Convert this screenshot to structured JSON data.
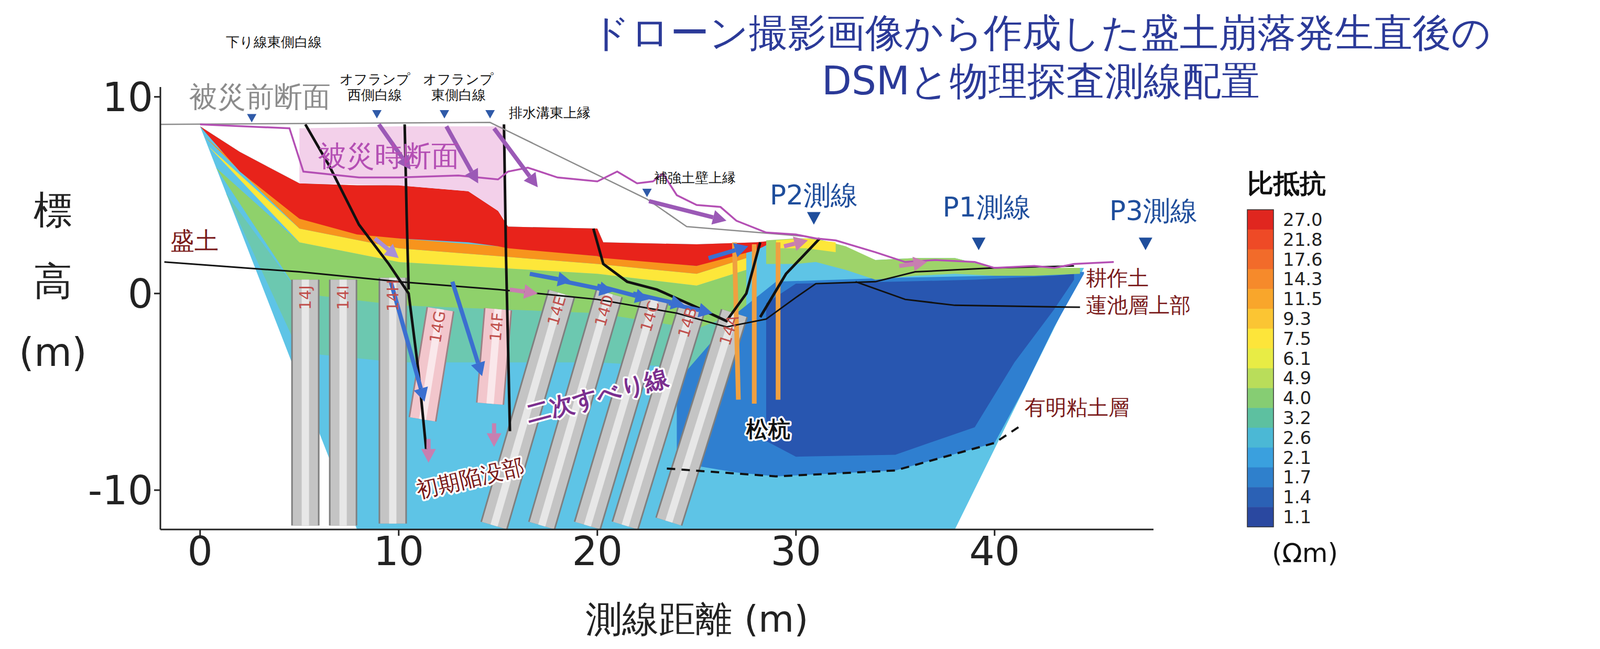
{
  "chart_data": {
    "type": "section",
    "title": [
      "ドローン撮影画像から作成した盛土崩落発生直後の",
      "DSMと物理探査測線配置"
    ],
    "x_label": "測線距離 (m)",
    "y_label": "標高 (m)",
    "xlim": [
      -2,
      48
    ],
    "xticks": [
      0,
      10,
      20,
      30,
      40
    ],
    "ylim": [
      -12,
      10.5
    ],
    "yticks": [
      -10,
      0,
      10
    ],
    "zones": [
      {
        "color": "#5ec4e6",
        "x": [
          0,
          2,
          5,
          7.9,
          10,
          13.5,
          15,
          15.5,
          20,
          20.3,
          25,
          28,
          30,
          31,
          34,
          36,
          38,
          40,
          42,
          44.5
        ],
        "lo": [
          8.5,
          3.3,
          -4.5,
          -12,
          -12,
          -12,
          -12,
          -12,
          -12,
          -12,
          -12,
          -12,
          -12,
          -12,
          -12,
          -12,
          -12,
          -7.9,
          -3.8,
          1.3
        ],
        "hi": [
          8.5,
          7.2,
          5.6,
          5.5,
          5.5,
          5.2,
          4.2,
          3.4,
          3.3,
          2.6,
          2.5,
          2.6,
          2.8,
          2.8,
          1.7,
          1.8,
          1.8,
          1.3,
          1.3,
          1.3
        ]
      },
      {
        "color": "#6cc8b0",
        "x": [
          1.3,
          5,
          10,
          15,
          20,
          25,
          27.5
        ],
        "lo": [
          5.1,
          -3.0,
          -3.5,
          -3.5,
          -3.5,
          -3.8,
          -2.5
        ],
        "hi": [
          5.1,
          0.0,
          -0.6,
          -0.8,
          -1.0,
          -1.8,
          -0.8
        ]
      },
      {
        "color": "#8fd16b",
        "x": [
          0.8,
          5,
          10,
          15,
          20,
          25,
          27.5
        ],
        "lo": [
          6.4,
          0.0,
          -0.6,
          -0.8,
          -1.0,
          -1.8,
          -0.8
        ],
        "hi": [
          6.4,
          2.6,
          1.6,
          1.3,
          1.0,
          0.4,
          1.2
        ]
      },
      {
        "color": "#fde73a",
        "x": [
          0.4,
          5,
          10,
          15,
          20,
          25,
          27.5
        ],
        "lo": [
          7.5,
          2.6,
          1.6,
          1.3,
          1.0,
          0.4,
          1.2
        ],
        "hi": [
          7.5,
          3.3,
          2.3,
          1.9,
          1.5,
          1.0,
          1.8
        ]
      },
      {
        "color": "#f7941d",
        "x": [
          0.2,
          5,
          10,
          15,
          20,
          25,
          27.5
        ],
        "lo": [
          8.0,
          3.3,
          2.3,
          1.9,
          1.5,
          1.0,
          1.8
        ],
        "hi": [
          8.0,
          3.8,
          2.8,
          2.4,
          1.9,
          1.4,
          2.2
        ]
      },
      {
        "color": "#e8231b",
        "x": [
          0,
          2,
          5,
          7.9,
          10,
          13.5,
          15,
          15.5,
          20,
          20.3,
          25,
          28,
          29
        ],
        "lo": [
          8.5,
          6.2,
          3.8,
          3.0,
          2.8,
          2.6,
          2.4,
          2.3,
          1.9,
          1.8,
          1.4,
          2.2,
          2.7
        ],
        "hi": [
          8.5,
          7.2,
          5.6,
          5.5,
          5.5,
          5.2,
          4.2,
          3.4,
          3.3,
          2.6,
          2.5,
          2.6,
          2.7
        ]
      },
      {
        "color": "#2f7fd0",
        "x": [
          24,
          27,
          29,
          35,
          40,
          41.5,
          43,
          44.5
        ],
        "lo": [
          -8.6,
          -9.1,
          -9.3,
          -9.0,
          -7.6,
          -4.8,
          -1.7,
          1.0
        ],
        "hi": [
          -4.5,
          -1.0,
          0.6,
          0.8,
          0.9,
          0.9,
          1.0,
          1.1
        ]
      },
      {
        "color": "#2856b0",
        "x": [
          28.5,
          30,
          35,
          39,
          41,
          43,
          44
        ],
        "lo": [
          -7.5,
          -8.3,
          -8.2,
          -6.8,
          -3.5,
          -0.8,
          0.7
        ],
        "hi": [
          -0.5,
          0.5,
          0.6,
          0.7,
          0.8,
          0.9,
          1.0
        ]
      },
      {
        "color": "#9ed36a",
        "x": [
          28.5,
          30,
          31,
          32.5,
          34,
          36,
          38,
          40,
          42,
          44.3
        ],
        "lo": [
          1.5,
          1.5,
          1.6,
          1.2,
          0.7,
          0.9,
          1.0,
          0.9,
          0.9,
          1.0
        ],
        "hi": [
          2.7,
          2.8,
          2.8,
          2.4,
          1.7,
          1.8,
          1.8,
          1.3,
          1.3,
          1.3
        ]
      },
      {
        "color": "#fde73a",
        "x": [
          29,
          30.5,
          32
        ],
        "lo": [
          2.3,
          2.3,
          2.1
        ],
        "hi": [
          2.7,
          2.8,
          2.6
        ]
      },
      {
        "color": "#f3d0ea",
        "x": [
          5,
          10,
          13.5,
          15,
          15.3
        ],
        "lo": [
          5.6,
          5.5,
          5.2,
          4.2,
          3.8
        ],
        "hi": [
          8.4,
          8.5,
          8.5,
          8.5,
          8.5
        ]
      }
    ],
    "profiles": [
      {
        "name": "被災前断面",
        "color": "#8c8c8c",
        "x": [
          -2,
          14.6,
          22.5,
          24.5,
          30.5
        ],
        "y": [
          8.6,
          8.7,
          4.8,
          3.4,
          2.9
        ],
        "label_x": 3.0,
        "label_y": 10.0
      },
      {
        "name": "被災時断面",
        "color": "#b44fb4",
        "x": [
          0,
          4.5,
          5.2,
          8,
          10,
          13,
          15,
          15.5,
          16.5,
          18,
          20,
          21,
          22,
          22.8,
          23.3,
          24,
          25,
          26.2,
          27,
          28.5,
          30,
          31,
          32,
          34,
          35.5,
          37,
          39,
          40,
          42,
          43,
          44,
          46
        ],
        "y": [
          8.6,
          8.4,
          6.2,
          5.9,
          5.9,
          6.0,
          5.8,
          6.2,
          6.4,
          5.9,
          5.7,
          6.2,
          5.6,
          5.7,
          6.1,
          5.0,
          4.5,
          4.4,
          3.7,
          3.1,
          3.0,
          2.8,
          2.7,
          2.1,
          1.6,
          1.7,
          1.6,
          1.3,
          1.4,
          1.3,
          1.5,
          1.6
        ],
        "label_x": 9.5,
        "label_y": 7.0
      }
    ],
    "boundaries": [
      {
        "x": [
          -1.8,
          5,
          10,
          15,
          20,
          24,
          26.5
        ],
        "y": [
          1.6,
          1.1,
          0.6,
          0.2,
          -0.3,
          -1.0,
          -1.7
        ]
      },
      {
        "x": [
          26.5,
          28.5,
          30,
          31,
          34,
          36,
          38,
          40,
          44
        ],
        "y": [
          -1.7,
          -1.3,
          -0.2,
          0.5,
          0.6,
          1.1,
          1.2,
          1.3,
          1.4
        ]
      },
      {
        "x": [
          33,
          35.5,
          38,
          44.3
        ],
        "y": [
          0.6,
          -0.3,
          -0.6,
          -0.7
        ]
      }
    ],
    "slip_lines": {
      "label": "二次すべり線",
      "label_x": 20.0,
      "label_y": -5.2,
      "lines": [
        {
          "x": [
            5.3,
            6.5,
            8,
            9.5,
            10.5,
            11,
            11.4
          ],
          "y": [
            8.6,
            6.5,
            3.5,
            1.5,
            0,
            -4,
            -8.1
          ]
        },
        {
          "x": [
            10.3,
            10.4,
            10.5
          ],
          "y": [
            8.6,
            4,
            0.2
          ]
        },
        {
          "x": [
            15.3,
            15.4,
            15.6
          ],
          "y": [
            8.6,
            2,
            -7.0
          ]
        },
        {
          "x": [
            19.8,
            20.3,
            21.5,
            23,
            25,
            26.5,
            27.5,
            28.2
          ],
          "y": [
            3.3,
            1.5,
            0.6,
            0.2,
            -0.7,
            -1.4,
            0,
            2.6
          ]
        },
        {
          "x": [
            28.2,
            29.5,
            31.2
          ],
          "y": [
            -1.2,
            1.0,
            2.8
          ]
        }
      ]
    },
    "collapse": {
      "label": "初期陥没部",
      "x": 13.6,
      "y": -9.4
    },
    "clay_boundary": {
      "label": "有明粘土層",
      "label_x": 41.5,
      "label_y": -5.8,
      "line_style": "dashed",
      "x": [
        23.5,
        29,
        35,
        40,
        41.2
      ],
      "y": [
        -8.9,
        -9.3,
        -9.0,
        -7.6,
        -6.8
      ]
    },
    "layer_labels": [
      {
        "text": "盛土",
        "x": -1.5,
        "y": 2.7
      },
      {
        "text": "耕作土",
        "x": 44.6,
        "y": 0.8
      },
      {
        "text": "蓮池層上部",
        "x": 44.6,
        "y": -0.6
      }
    ],
    "site_notes": [
      {
        "text": [
          "下り線東側白線"
        ],
        "x": 3.7,
        "y": 12.8,
        "point": [
          2.6,
          8.7
        ]
      },
      {
        "text": [
          "オフランプ",
          "西側白線"
        ],
        "x": 8.8,
        "y": 10.9,
        "point": [
          8.9,
          8.9
        ]
      },
      {
        "text": [
          "オフランプ",
          "東側白線"
        ],
        "x": 13.0,
        "y": 10.9,
        "point": [
          12.3,
          8.9
        ]
      },
      {
        "text": [
          "排水溝東上縁"
        ],
        "x": 17.6,
        "y": 9.2,
        "point": [
          14.6,
          8.9
        ]
      },
      {
        "text": [
          "補強土壁上縁"
        ],
        "x": 24.9,
        "y": 5.9,
        "point": [
          22.5,
          4.9
        ]
      }
    ],
    "survey_lines": [
      {
        "text": "P2測線",
        "x": 30.9,
        "y": 5.0,
        "point": [
          30.9,
          3.5
        ]
      },
      {
        "text": "P1測線",
        "x": 39.6,
        "y": 4.4,
        "point": [
          39.2,
          2.2
        ]
      },
      {
        "text": "P3測線",
        "x": 48.0,
        "y": 4.2,
        "point": [
          47.6,
          2.2
        ]
      }
    ],
    "piles": [
      {
        "label": "14J",
        "x": [
          5.3,
          5.3
        ],
        "y": [
          0.7,
          -11.8
        ],
        "color": "#c4c4c4"
      },
      {
        "label": "14I",
        "x": [
          7.2,
          7.2
        ],
        "y": [
          0.7,
          -11.8
        ],
        "color": "#c4c4c4"
      },
      {
        "label": "14H",
        "x": [
          9.7,
          9.7
        ],
        "y": [
          0.8,
          -11.7
        ],
        "color": "#c4c4c4"
      },
      {
        "label": "14G",
        "x": [
          12.1,
          11.2
        ],
        "y": [
          -0.8,
          -6.4
        ],
        "color": "#f2c6cc"
      },
      {
        "label": "14F",
        "x": [
          15.0,
          14.6
        ],
        "y": [
          -0.8,
          -5.6
        ],
        "color": "#f2c6cc"
      },
      {
        "label": "14E",
        "x": [
          18.2,
          14.8
        ],
        "y": [
          0.0,
          -11.8
        ],
        "color": "#c4c4c4"
      },
      {
        "label": "14D",
        "x": [
          20.6,
          17.2
        ],
        "y": [
          0.0,
          -11.8
        ],
        "color": "#c4c4c4"
      },
      {
        "label": "14C",
        "x": [
          22.9,
          19.5
        ],
        "y": [
          -0.3,
          -11.8
        ],
        "color": "#c4c4c4"
      },
      {
        "label": "14B",
        "x": [
          24.8,
          21.4
        ],
        "y": [
          -0.6,
          -11.8
        ],
        "color": "#c4c4c4"
      },
      {
        "label": "14A",
        "x": [
          26.9,
          23.6
        ],
        "y": [
          -1.0,
          -11.6
        ],
        "color": "#c4c4c4"
      }
    ],
    "pine_piles": {
      "label": "松杭",
      "label_x": 28.6,
      "label_y": -6.9,
      "color": "#f0a040",
      "piles": [
        {
          "x": [
            26.9,
            27.1
          ],
          "y": [
            2.6,
            -5.4
          ]
        },
        {
          "x": [
            27.9,
            27.9
          ],
          "y": [
            2.5,
            -5.6
          ]
        },
        {
          "x": [
            29.1,
            29.1
          ],
          "y": [
            2.6,
            -5.4
          ]
        }
      ]
    },
    "arrows": [
      {
        "x": [
          9.0,
          10.6
        ],
        "y": [
          8.6,
          6.3
        ],
        "color": "#9b59b6"
      },
      {
        "x": [
          12.4,
          14.0
        ],
        "y": [
          8.5,
          5.6
        ],
        "color": "#9b59b6"
      },
      {
        "x": [
          14.8,
          17.0
        ],
        "y": [
          8.4,
          5.4
        ],
        "color": "#9b59b6"
      },
      {
        "x": [
          22.6,
          26.5
        ],
        "y": [
          4.7,
          3.7
        ],
        "color": "#9b59b6"
      },
      {
        "x": [
          8.8,
          10.0
        ],
        "y": [
          2.8,
          1.8
        ],
        "color": "#a88fd8"
      },
      {
        "x": [
          15.6,
          17.0
        ],
        "y": [
          0.2,
          0.0
        ],
        "color": "#c87fb0"
      },
      {
        "x": [
          29.4,
          30.6
        ],
        "y": [
          2.4,
          2.7
        ],
        "color": "#c87fb0"
      },
      {
        "x": [
          35.2,
          36.6
        ],
        "y": [
          1.4,
          1.6
        ],
        "color": "#c87fb0"
      },
      {
        "x": [
          11.5,
          11.5
        ],
        "y": [
          -7.4,
          -8.6
        ],
        "color": "#c87fb0"
      },
      {
        "x": [
          14.8,
          14.8
        ],
        "y": [
          -6.6,
          -7.8
        ],
        "color": "#c87fb0"
      },
      {
        "x": [
          9.6,
          11.3
        ],
        "y": [
          0.6,
          -5.5
        ],
        "color": "#3b6fd0"
      },
      {
        "x": [
          12.7,
          14.2
        ],
        "y": [
          0.6,
          -4.2
        ],
        "color": "#3b6fd0"
      },
      {
        "x": [
          16.6,
          18.7
        ],
        "y": [
          1.0,
          0.6
        ],
        "color": "#3b6fd0"
      },
      {
        "x": [
          18.4,
          20.8
        ],
        "y": [
          0.6,
          0.1
        ],
        "color": "#3b6fd0"
      },
      {
        "x": [
          20.0,
          22.6
        ],
        "y": [
          0.4,
          -0.3
        ],
        "color": "#3b6fd0"
      },
      {
        "x": [
          21.8,
          24.4
        ],
        "y": [
          0.0,
          -0.6
        ],
        "color": "#3b6fd0"
      },
      {
        "x": [
          23.6,
          25.8
        ],
        "y": [
          -0.5,
          -1.0
        ],
        "color": "#3b6fd0"
      },
      {
        "x": [
          25.6,
          27.6
        ],
        "y": [
          1.8,
          2.4
        ],
        "color": "#3b6fd0"
      }
    ],
    "colorbar": {
      "title": "比抵抗",
      "unit": "(Ωm)",
      "ticks": [
        {
          "value": 27,
          "label": "27.0"
        },
        21.8,
        17.6,
        14.3,
        11.5,
        9.3,
        7.5,
        6.1,
        4.9,
        {
          "value": 4,
          "label": "4.0"
        },
        3.2,
        2.6,
        2.1,
        1.7,
        1.4,
        1.1
      ],
      "colors": [
        "#e0261f",
        "#ee4a26",
        "#f26b2a",
        "#f68a2b",
        "#f9a62b",
        "#fbc533",
        "#fde53a",
        "#e8ec45",
        "#b9dd5a",
        "#86cd73",
        "#5dc0a0",
        "#4bb8d5",
        "#3aa0de",
        "#2f80cc",
        "#2b61b5",
        "#2a48a0"
      ]
    }
  }
}
